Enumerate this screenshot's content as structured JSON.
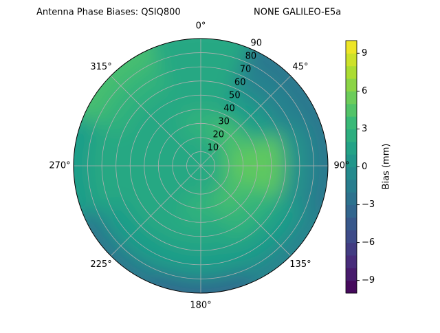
{
  "chart_data": {
    "type": "polar-contour",
    "title": "Antenna Phase Biases: QSIQ800",
    "subtitle": "NONE GALILEO-E5a",
    "colorbar_label": "Bias (mm)",
    "azimuths": [
      0,
      45,
      90,
      135,
      180,
      225,
      270,
      315
    ],
    "radii": [
      10,
      30,
      50,
      70,
      90
    ],
    "values": [
      [
        2,
        2,
        3,
        2,
        2,
        2,
        2,
        2
      ],
      [
        3,
        4,
        5,
        4,
        3,
        2,
        2,
        2
      ],
      [
        2,
        1,
        5,
        3,
        2,
        2,
        2,
        2
      ],
      [
        2,
        -1,
        0,
        1,
        1,
        1,
        2,
        3
      ],
      [
        2,
        -2,
        -2,
        -1,
        -3,
        -2,
        1,
        4
      ]
    ],
    "rlim": [
      0,
      90
    ],
    "yticks": [
      10,
      20,
      30,
      40,
      50,
      60,
      70,
      80,
      90
    ],
    "xticks": [
      {
        "value": 0,
        "label": "0°"
      },
      {
        "value": 45,
        "label": "45°"
      },
      {
        "value": 90,
        "label": "90°"
      },
      {
        "value": 135,
        "label": "135°"
      },
      {
        "value": 180,
        "label": "180°"
      },
      {
        "value": 225,
        "label": "225°"
      },
      {
        "value": 270,
        "label": "270°"
      },
      {
        "value": 315,
        "label": "315°"
      }
    ],
    "clim": [
      -10,
      10
    ],
    "cticks": [
      {
        "value": -9,
        "label": "−9"
      },
      {
        "value": -6,
        "label": "−6"
      },
      {
        "value": -3,
        "label": "−3"
      },
      0,
      3,
      6,
      9
    ],
    "colormap": "viridis",
    "grid": true
  }
}
